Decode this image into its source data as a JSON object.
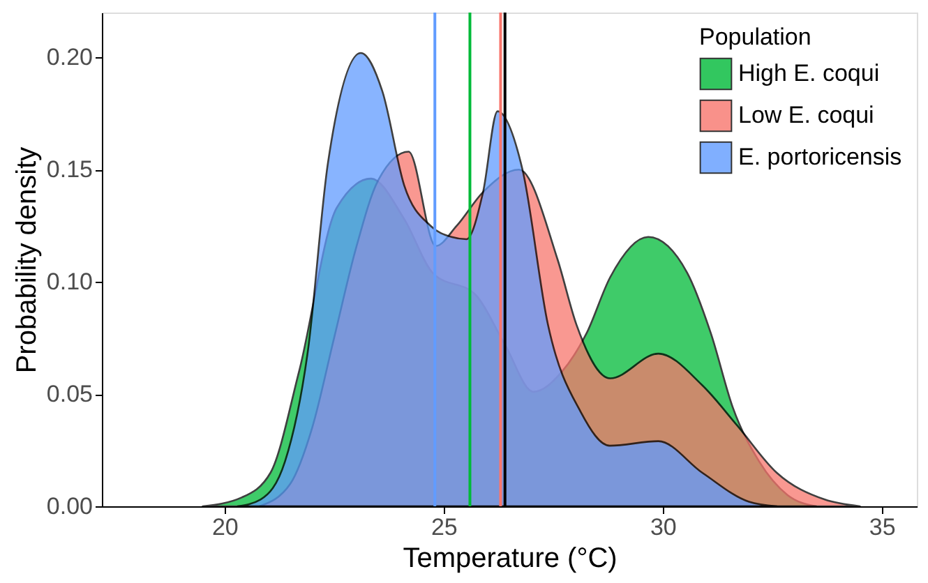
{
  "chart_data": {
    "type": "area",
    "xlabel": "Temperature (°C)",
    "ylabel": "Probability density",
    "legend_title": "Population",
    "legend": "top right",
    "grid": false,
    "xlim": [
      17.2,
      35.8
    ],
    "xticks": [
      20,
      25,
      30,
      35
    ],
    "ylim": [
      0,
      0.22
    ],
    "yticks": [
      {
        "value": 0,
        "label": "0.00"
      },
      {
        "value": 0.05,
        "label": "0.05"
      },
      {
        "value": 0.1,
        "label": "0.10"
      },
      {
        "value": 0.15,
        "label": "0.15"
      },
      {
        "value": 0.2,
        "label": "0.20"
      }
    ],
    "series": [
      {
        "name": "High E. coqui",
        "color": "#00ba38",
        "x": [
          19.5,
          20.4,
          21.05,
          21.7,
          22.56,
          23.34,
          24.1,
          24.75,
          25.74,
          26.4,
          27.05,
          27.7,
          28.26,
          28.8,
          29.67,
          30.56,
          31.1,
          31.6,
          32.2,
          32.85,
          33.5
        ],
        "values": [
          0,
          0.004,
          0.015,
          0.06,
          0.133,
          0.146,
          0.128,
          0.104,
          0.094,
          0.072,
          0.051,
          0.06,
          0.077,
          0.102,
          0.12,
          0.104,
          0.077,
          0.044,
          0.02,
          0.005,
          0
        ]
      },
      {
        "name": "Low E. coqui",
        "color": "#f8766d",
        "x": [
          20.8,
          21.5,
          22,
          22.5,
          23,
          23.5,
          24.2,
          24.82,
          25.3,
          25.9,
          26.72,
          27.6,
          28.03,
          28.8,
          29.9,
          30.9,
          31.7,
          32.6,
          33.7,
          34.5
        ],
        "values": [
          0,
          0.01,
          0.035,
          0.075,
          0.115,
          0.145,
          0.158,
          0.116,
          0.125,
          0.14,
          0.15,
          0.11,
          0.081,
          0.057,
          0.068,
          0.054,
          0.036,
          0.015,
          0.003,
          0
        ]
      },
      {
        "name": "E. portoricensis",
        "color": "#619cff",
        "x": [
          20.3,
          20.82,
          21.38,
          21.9,
          22.36,
          23.11,
          23.6,
          24.1,
          24.7,
          25.18,
          25.52,
          25.9,
          26.23,
          26.8,
          27.38,
          28.13,
          28.79,
          29.9,
          30.9,
          31.97,
          32.6
        ],
        "values": [
          0,
          0.003,
          0.02,
          0.069,
          0.153,
          0.202,
          0.185,
          0.143,
          0.125,
          0.12,
          0.119,
          0.14,
          0.176,
          0.15,
          0.081,
          0.042,
          0.027,
          0.029,
          0.015,
          0.002,
          0
        ]
      }
    ],
    "ref_lines": [
      {
        "axis": "x",
        "value": 24.8,
        "color": "#619cff"
      },
      {
        "axis": "x",
        "value": 25.6,
        "color": "#00ba38"
      },
      {
        "axis": "x",
        "value": 26.3,
        "color": "#f8766d"
      },
      {
        "axis": "x",
        "value": 26.4,
        "color": "#000000"
      }
    ]
  }
}
